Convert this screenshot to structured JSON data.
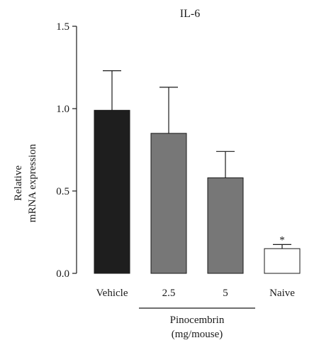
{
  "chart_data": {
    "type": "bar",
    "title": "IL-6",
    "ylabel_lines": [
      "Relative",
      "mRNA expression"
    ],
    "xlabel": "",
    "ylim": [
      0,
      1.5
    ],
    "yticks": [
      0.0,
      0.5,
      1.0,
      1.5
    ],
    "ytick_labels": [
      "0.0",
      "0.5",
      "1.0",
      "1.5"
    ],
    "categories": [
      "Vehicle",
      "2.5",
      "5",
      "Naive"
    ],
    "values": [
      0.99,
      0.85,
      0.58,
      0.15
    ],
    "errors": [
      0.24,
      0.28,
      0.16,
      0.025
    ],
    "bar_colors": [
      "#1e1e1e",
      "#777777",
      "#777777",
      "#ffffff"
    ],
    "annotations": [
      {
        "category": "Naive",
        "text": "*"
      }
    ],
    "group_label": {
      "lines": [
        "Pinocembrin",
        "(mg/mouse)"
      ],
      "categories": [
        "2.5",
        "5"
      ]
    },
    "grid": false,
    "legend": "none"
  }
}
